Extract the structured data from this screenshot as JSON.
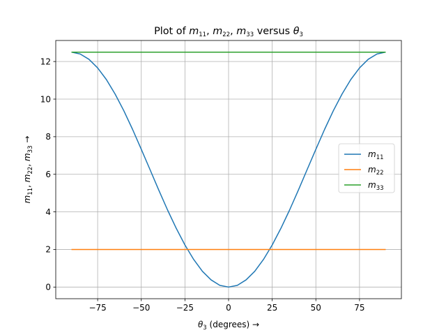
{
  "chart_data": {
    "type": "line",
    "title": "Plot of m11, m22, m33 versus θ3",
    "xlabel": "θ3 (degrees) →",
    "ylabel": "m11, m22, m33 →",
    "xlim": [
      -99,
      99
    ],
    "ylim": [
      -0.62,
      13.12
    ],
    "xticks": [
      -75,
      -50,
      -25,
      0,
      25,
      50,
      75
    ],
    "xtick_labels": [
      "−75",
      "−50",
      "−25",
      "0",
      "25",
      "50",
      "75"
    ],
    "yticks": [
      0,
      2,
      4,
      6,
      8,
      10,
      12
    ],
    "ytick_labels": [
      "0",
      "2",
      "4",
      "6",
      "8",
      "10",
      "12"
    ],
    "grid": true,
    "legend": "center-right",
    "x": [
      -90,
      -85,
      -80,
      -75,
      -70,
      -65,
      -60,
      -55,
      -50,
      -45,
      -40,
      -35,
      -30,
      -25,
      -20,
      -15,
      -10,
      -5,
      0,
      5,
      10,
      15,
      20,
      25,
      30,
      35,
      40,
      45,
      50,
      55,
      60,
      65,
      70,
      75,
      80,
      85,
      90
    ],
    "series": [
      {
        "name": "m11",
        "color": "#1f77b4",
        "values": [
          12.5,
          12.4,
          12.12,
          11.66,
          11.04,
          10.27,
          9.38,
          8.39,
          7.33,
          6.25,
          5.16,
          4.11,
          3.13,
          2.24,
          1.47,
          0.84,
          0.38,
          0.09,
          0.0,
          0.09,
          0.38,
          0.84,
          1.47,
          2.24,
          3.13,
          4.11,
          5.16,
          6.25,
          7.33,
          8.39,
          9.38,
          10.27,
          11.04,
          11.66,
          12.12,
          12.4,
          12.5
        ]
      },
      {
        "name": "m22",
        "color": "#ff7f0e",
        "values": [
          2.0,
          2.0,
          2.0,
          2.0,
          2.0,
          2.0,
          2.0,
          2.0,
          2.0,
          2.0,
          2.0,
          2.0,
          2.0,
          2.0,
          2.0,
          2.0,
          2.0,
          2.0,
          2.0,
          2.0,
          2.0,
          2.0,
          2.0,
          2.0,
          2.0,
          2.0,
          2.0,
          2.0,
          2.0,
          2.0,
          2.0,
          2.0,
          2.0,
          2.0,
          2.0,
          2.0,
          2.0
        ]
      },
      {
        "name": "m33",
        "color": "#2ca02c",
        "values": [
          12.5,
          12.5,
          12.5,
          12.5,
          12.5,
          12.5,
          12.5,
          12.5,
          12.5,
          12.5,
          12.5,
          12.5,
          12.5,
          12.5,
          12.5,
          12.5,
          12.5,
          12.5,
          12.5,
          12.5,
          12.5,
          12.5,
          12.5,
          12.5,
          12.5,
          12.5,
          12.5,
          12.5,
          12.5,
          12.5,
          12.5,
          12.5,
          12.5,
          12.5,
          12.5,
          12.5,
          12.5
        ]
      }
    ]
  }
}
